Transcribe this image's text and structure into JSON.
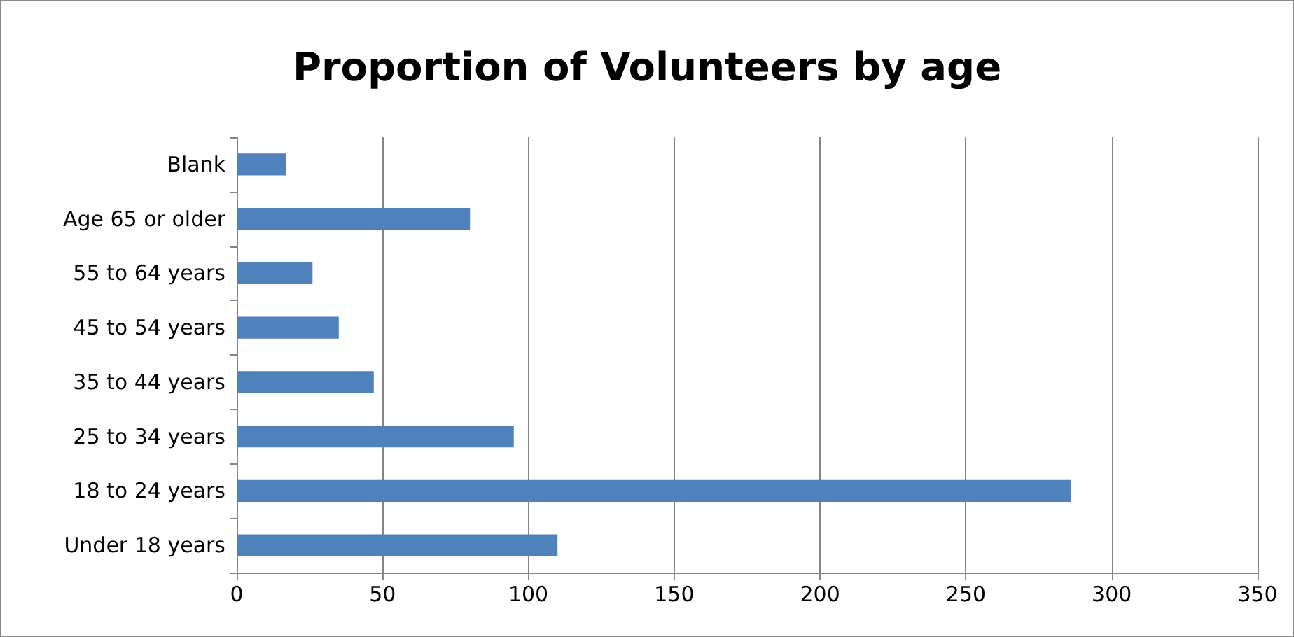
{
  "chart_data": {
    "type": "bar",
    "orientation": "horizontal",
    "title": "Proportion of Volunteers by age",
    "categories": [
      "Blank",
      "Age 65 or older",
      "55 to 64 years",
      "45 to 54 years",
      "35 to 44 years",
      "25 to 34 years",
      "18 to 24 years",
      "Under 18 years"
    ],
    "values": [
      17,
      80,
      26,
      35,
      47,
      95,
      286,
      110
    ],
    "color": "#4f81bd",
    "xlim": [
      0,
      350
    ],
    "xticks": [
      0,
      50,
      100,
      150,
      200,
      250,
      300,
      350
    ],
    "grid": "x"
  }
}
